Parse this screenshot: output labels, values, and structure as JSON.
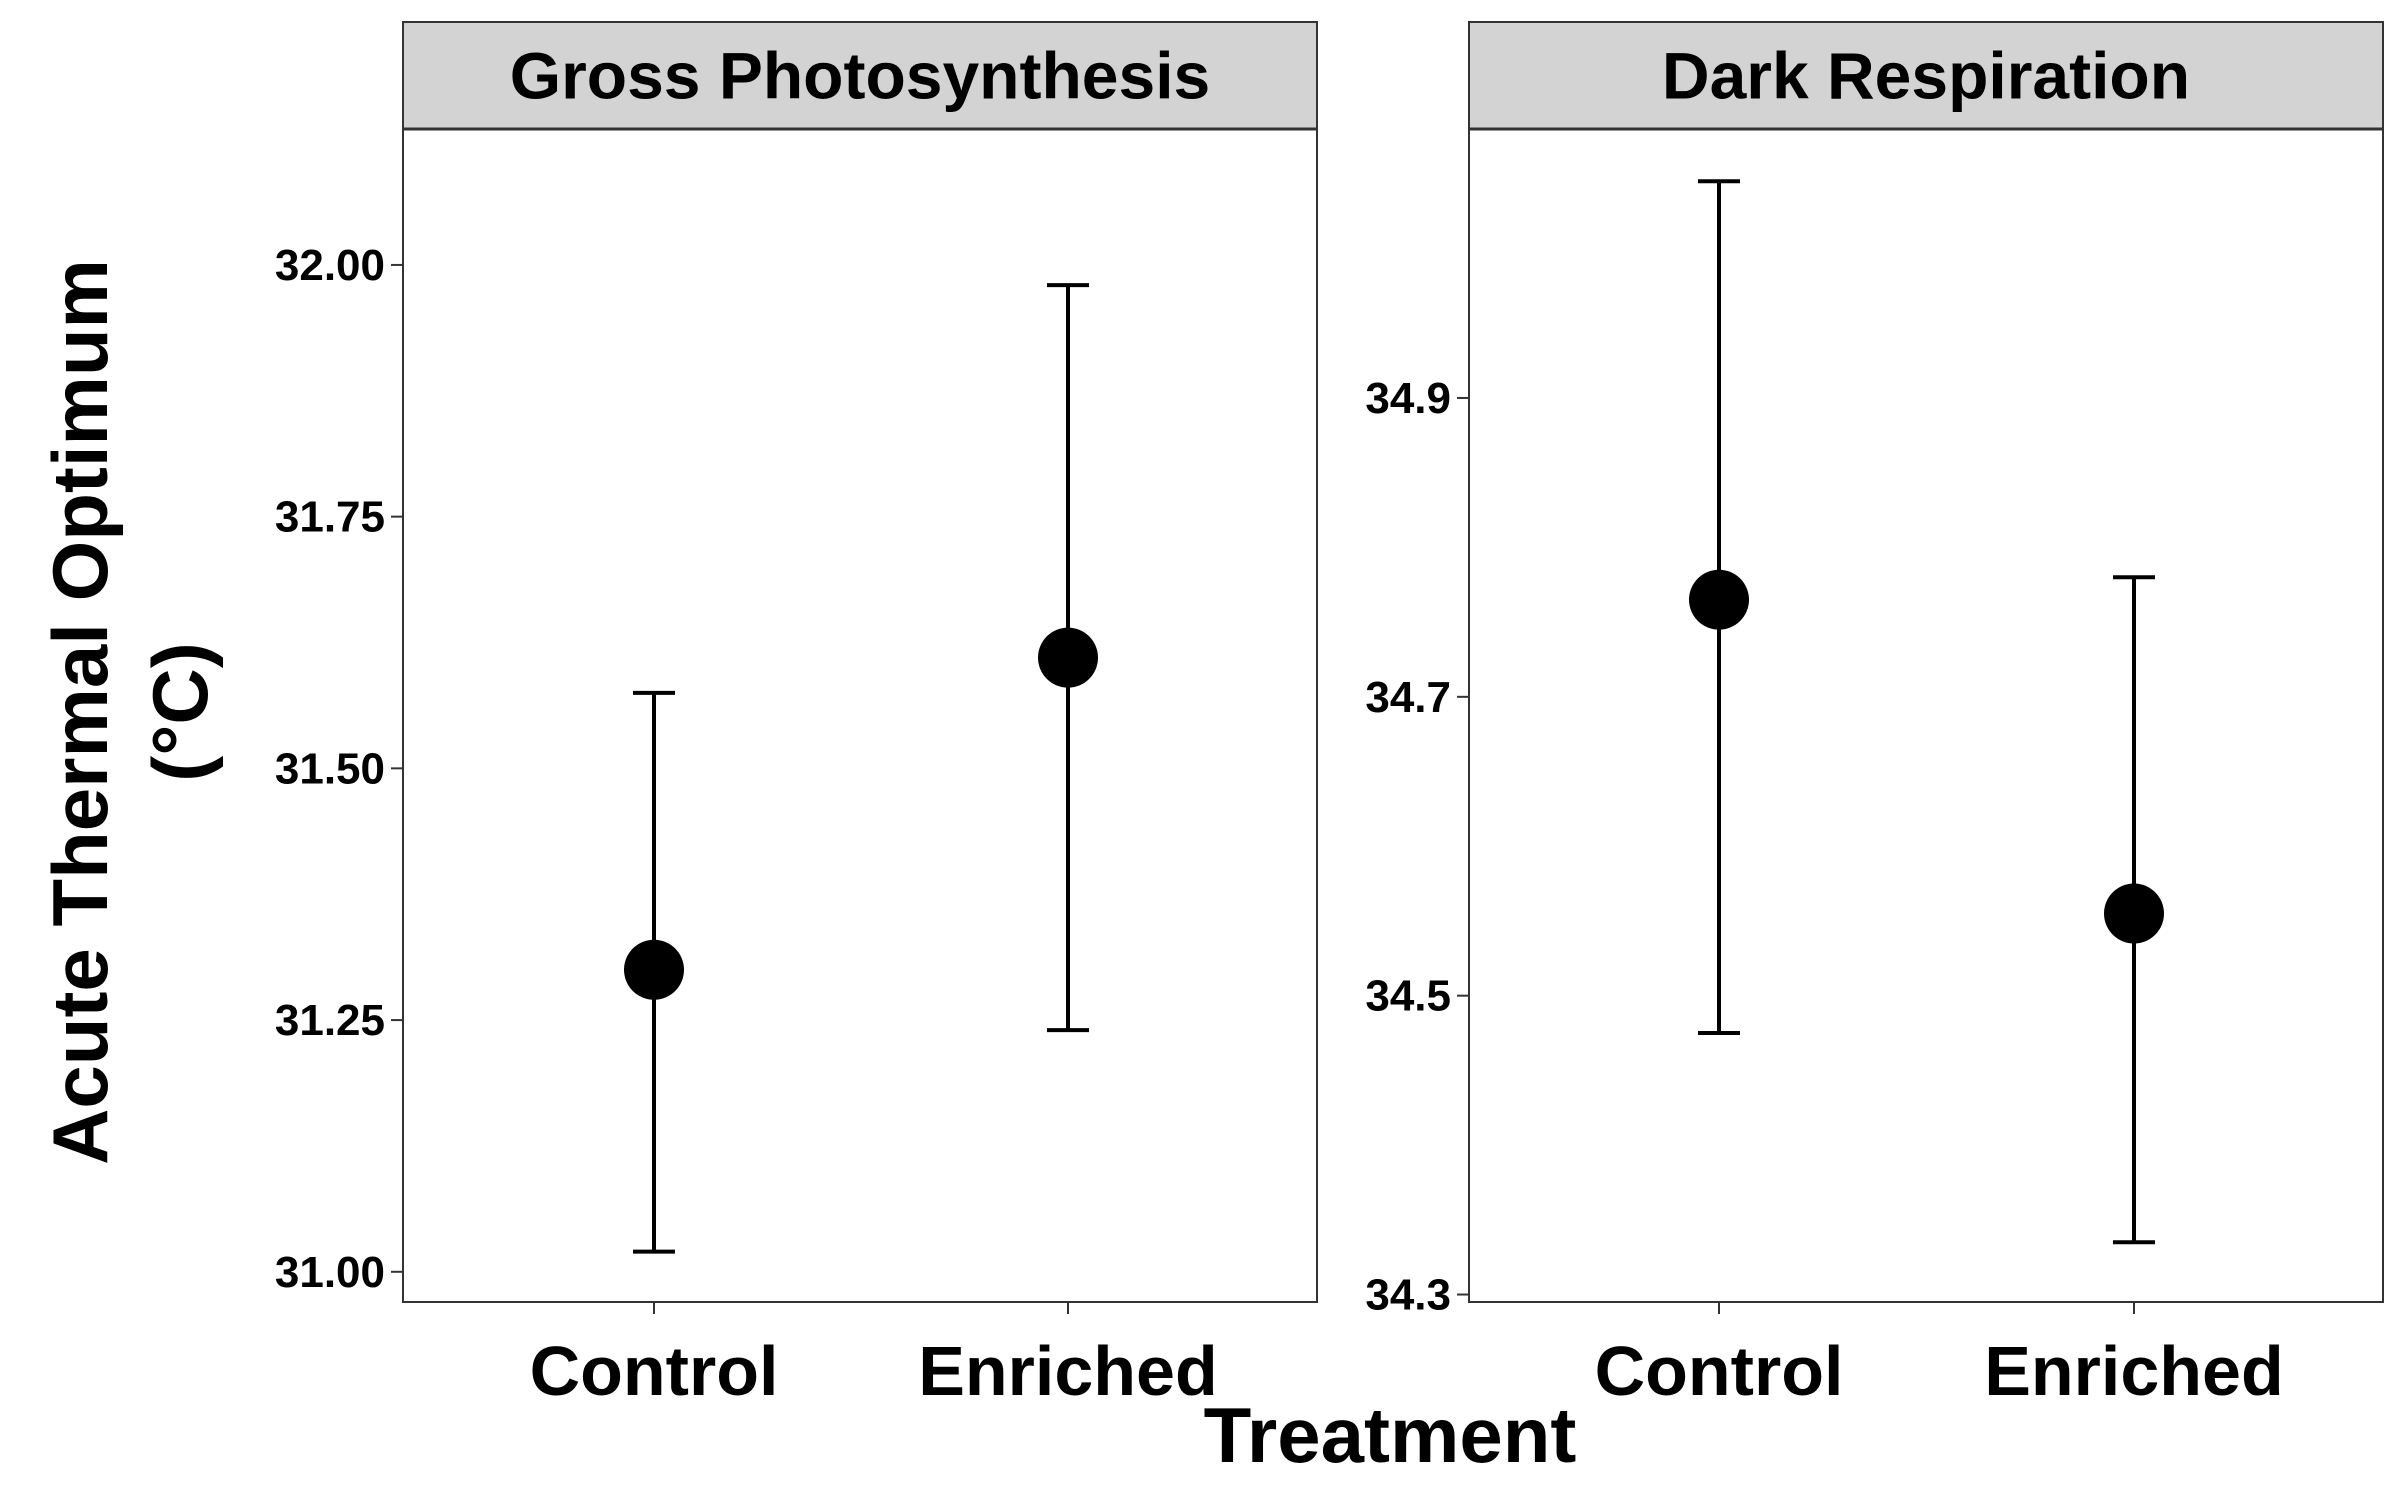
{
  "chart_data": [
    {
      "type": "scatter",
      "panel_title": "Gross Photosynthesis",
      "xlabel": "Treatment",
      "ylabel": [
        "Acute Thermal Optimum",
        "(°C)"
      ],
      "categories": [
        "Control",
        "Enriched"
      ],
      "points": [
        {
          "category": "Control",
          "y": 31.3,
          "ymin": 31.02,
          "ymax": 31.575
        },
        {
          "category": "Enriched",
          "y": 31.61,
          "ymin": 31.24,
          "ymax": 31.98
        }
      ],
      "ylim": [
        30.97,
        32.135
      ],
      "yticks": [
        31.0,
        31.25,
        31.5,
        31.75,
        32.0
      ],
      "ytick_labels": [
        "31.00",
        "31.25",
        "31.50",
        "31.75",
        "32.00"
      ],
      "grid": false
    },
    {
      "type": "scatter",
      "panel_title": "Dark Respiration",
      "xlabel": "Treatment",
      "ylabel": [
        "Acute Thermal Optimum",
        "(°C)"
      ],
      "categories": [
        "Control",
        "Enriched"
      ],
      "points": [
        {
          "category": "Control",
          "y": 34.765,
          "ymin": 34.475,
          "ymax": 35.045
        },
        {
          "category": "Enriched",
          "y": 34.555,
          "ymin": 34.335,
          "ymax": 34.78
        }
      ],
      "ylim": [
        34.295,
        35.08
      ],
      "yticks": [
        34.3,
        34.5,
        34.7,
        34.9
      ],
      "ytick_labels": [
        "34.3",
        "34.5",
        "34.7",
        "34.9"
      ],
      "grid": false
    }
  ],
  "shared_axes": {
    "xlabel": "Treatment",
    "ylabel_lines": [
      "Acute Thermal Optimum",
      "(°C)"
    ]
  },
  "colors": {
    "strip_fill": "#d3d3d3",
    "points": "#000000",
    "frame": "#333333"
  }
}
